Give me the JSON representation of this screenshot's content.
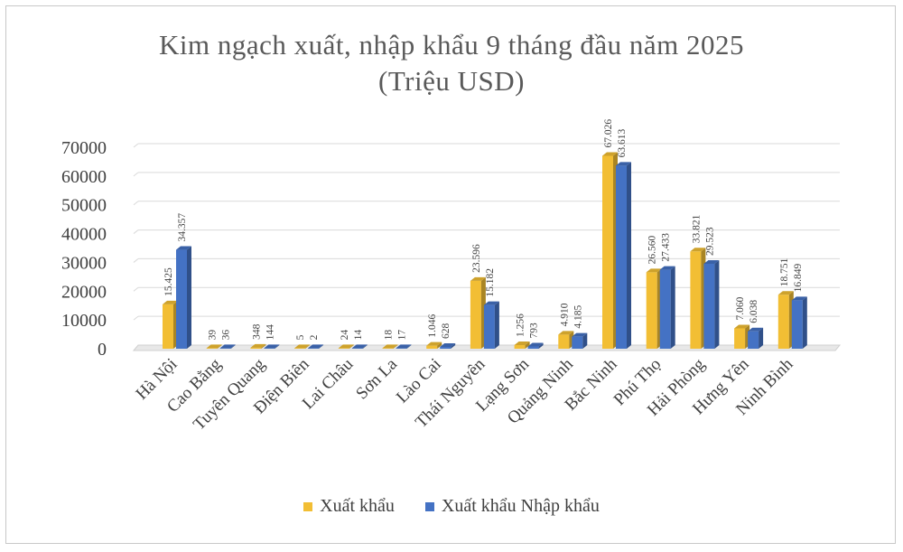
{
  "chart_data": {
    "type": "bar",
    "title_lines": [
      "Kim ngạch xuất, nhập khẩu 9 tháng đầu năm 2025",
      "(Triệu USD)"
    ],
    "categories": [
      "Hà Nội",
      "Cao Bằng",
      "Tuyên Quang",
      "Điện Biên",
      "Lai Châu",
      "Sơn La",
      "Lào Cai",
      "Thái Nguyên",
      "Lạng Sơn",
      "Quảng Ninh",
      "Bắc Ninh",
      "Phú Thọ",
      "Hải Phòng",
      "Hưng Yên",
      "Ninh Bình"
    ],
    "series": [
      {
        "name": "Xuất khẩu",
        "color": "#f2be34",
        "values": [
          15425,
          39,
          348,
          5,
          24,
          18,
          1046,
          23596,
          1256,
          4910,
          67026,
          26560,
          33821,
          7060,
          18751
        ],
        "labels": [
          "15.425",
          "39",
          "348",
          "5",
          "24",
          "18",
          "1.046",
          "23.596",
          "1.256",
          "4.910",
          "67.026",
          "26.560",
          "33.821",
          "7.060",
          "18.751"
        ]
      },
      {
        "name": "Xuất khẩu Nhập khẩu",
        "color": "#4472c4",
        "values": [
          34357,
          36,
          144,
          2,
          14,
          17,
          628,
          15182,
          793,
          4185,
          63613,
          27433,
          29523,
          6038,
          16849
        ],
        "labels": [
          "34.357",
          "36",
          "144",
          "2",
          "14",
          "17",
          "628",
          "15.182",
          "793",
          "4.185",
          "63.613",
          "27.433",
          "29.523",
          "6.038",
          "16.849"
        ]
      }
    ],
    "yticks": [
      "0",
      "10000",
      "20000",
      "30000",
      "40000",
      "50000",
      "60000",
      "70000"
    ],
    "ylim": [
      0,
      70000
    ],
    "grid": true,
    "legend": "bottom"
  }
}
